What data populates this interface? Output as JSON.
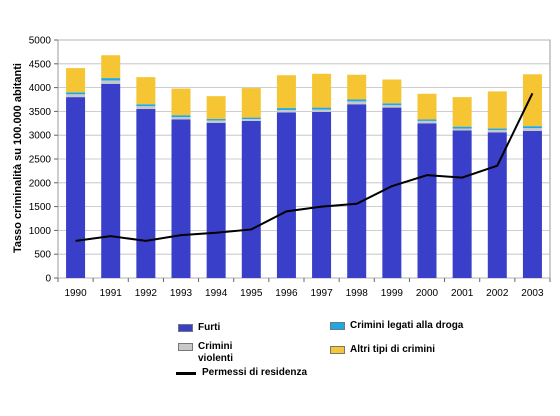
{
  "chart_data": {
    "type": "bar",
    "stacked": true,
    "title": "",
    "xlabel": "",
    "ylabel": "Tasso criminalità su 100.000 abitanti",
    "ylim": [
      0,
      5000
    ],
    "yticks": [
      0,
      500,
      1000,
      1500,
      2000,
      2500,
      3000,
      3500,
      4000,
      4500,
      5000
    ],
    "grid": true,
    "legend_position": "bottom",
    "categories": [
      "1990",
      "1991",
      "1992",
      "1993",
      "1994",
      "1995",
      "1996",
      "1997",
      "1998",
      "1999",
      "2000",
      "2001",
      "2002",
      "2003"
    ],
    "series": [
      {
        "name": "Furti",
        "color": "#3a3fc9",
        "values": [
          3800,
          4080,
          3550,
          3330,
          3260,
          3300,
          3480,
          3490,
          3650,
          3580,
          3250,
          3100,
          3060,
          3090
        ]
      },
      {
        "name": "Crimini violenti",
        "color": "#c8c8c8",
        "values": [
          60,
          70,
          60,
          50,
          50,
          40,
          50,
          50,
          60,
          50,
          50,
          40,
          50,
          60
        ]
      },
      {
        "name": "Crimini legati alla droga",
        "color": "#1ea8e8",
        "values": [
          40,
          50,
          40,
          40,
          30,
          30,
          40,
          40,
          40,
          40,
          30,
          40,
          30,
          40
        ]
      },
      {
        "name": "Altri tipi di crimini",
        "color": "#f5c533",
        "values": [
          510,
          480,
          570,
          560,
          480,
          620,
          690,
          710,
          520,
          500,
          540,
          620,
          780,
          1090
        ]
      }
    ],
    "line_series": {
      "name": "Permessi di residenza",
      "color": "#000000",
      "values": [
        780,
        880,
        780,
        900,
        950,
        1020,
        1400,
        1500,
        1560,
        1930,
        2160,
        2110,
        2360,
        3880
      ]
    }
  },
  "legend": [
    {
      "key": "furti",
      "label": "Furti",
      "color": "#3a3fc9",
      "kind": "swatch"
    },
    {
      "key": "droga",
      "label": "Crimini legati alla droga",
      "color": "#1ea8e8",
      "kind": "swatch"
    },
    {
      "key": "violenti",
      "label": "Crimini\nviolenti",
      "color": "#c8c8c8",
      "kind": "swatch"
    },
    {
      "key": "altri",
      "label": "Altri tipi di crimini",
      "color": "#f5c533",
      "kind": "swatch"
    },
    {
      "key": "permessi",
      "label": "Permessi di residenza",
      "color": "#000000",
      "kind": "line"
    }
  ]
}
